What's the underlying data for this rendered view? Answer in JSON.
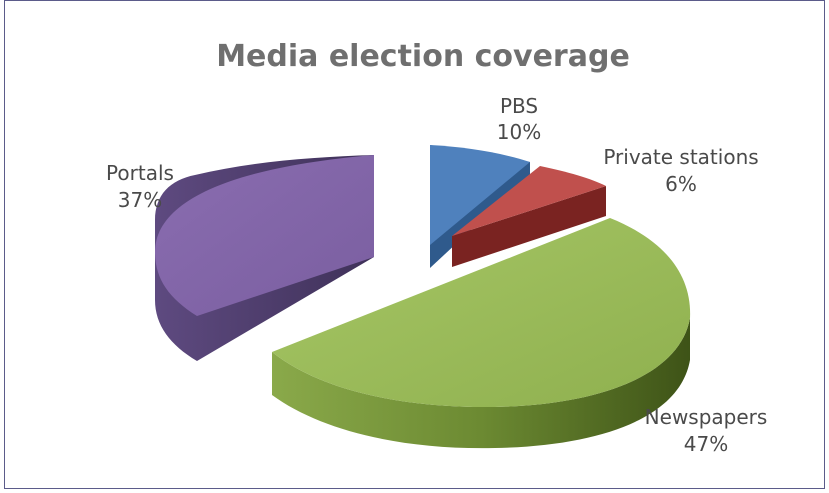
{
  "chart_data": {
    "type": "pie",
    "title": "Media election coverage",
    "categories": [
      "PBS",
      "Private stations",
      "Newspapers",
      "Portals"
    ],
    "values": [
      10,
      6,
      47,
      37
    ],
    "labels": [
      {
        "name": "PBS",
        "pct": "10%"
      },
      {
        "name": "Private stations",
        "pct": "6%"
      },
      {
        "name": "Newspapers",
        "pct": "47%"
      },
      {
        "name": "Portals",
        "pct": "37%"
      }
    ],
    "colors": [
      "#4f81bd",
      "#c0504d",
      "#9bbb59",
      "#8064a2"
    ],
    "style": "3d-exploded"
  }
}
